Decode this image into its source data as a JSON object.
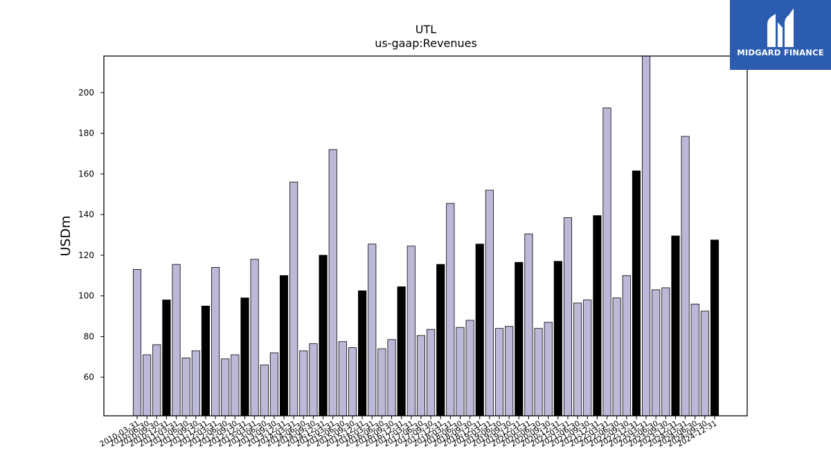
{
  "brand": {
    "name": "MIDGARD FINANCE",
    "color": "#2b5cb0",
    "icon": "midgard-logo-icon"
  },
  "chart_data": {
    "type": "bar",
    "title": "UTL",
    "subtitle": "us-gaap:Revenues",
    "xlabel": "",
    "ylabel": "USDm",
    "ylim": [
      41,
      218
    ],
    "yticks": [
      60,
      80,
      100,
      120,
      140,
      160,
      180,
      200
    ],
    "grid": false,
    "colors": {
      "quarter": "#bbb8d8",
      "year_end": "#000000",
      "edge": "#000000"
    },
    "categories": [
      "2010-03-31",
      "2010-06-30",
      "2010-09-30",
      "2010-12-31",
      "2011-03-31",
      "2011-06-30",
      "2011-09-30",
      "2011-12-31",
      "2012-03-31",
      "2012-06-30",
      "2012-09-30",
      "2012-12-31",
      "2013-03-31",
      "2013-06-30",
      "2013-09-30",
      "2013-12-31",
      "2014-03-31",
      "2014-06-30",
      "2014-09-30",
      "2014-12-31",
      "2015-03-31",
      "2015-06-30",
      "2015-09-30",
      "2015-12-31",
      "2016-03-31",
      "2016-06-30",
      "2016-09-30",
      "2016-12-31",
      "2017-03-31",
      "2017-06-30",
      "2017-09-30",
      "2017-12-31",
      "2018-03-31",
      "2018-06-30",
      "2018-09-30",
      "2018-12-31",
      "2019-03-31",
      "2019-06-30",
      "2019-09-30",
      "2019-12-31",
      "2020-03-31",
      "2020-06-30",
      "2020-09-30",
      "2020-12-31",
      "2021-03-31",
      "2021-06-30",
      "2021-09-30",
      "2021-12-31",
      "2022-03-31",
      "2022-06-30",
      "2022-09-30",
      "2022-12-31",
      "2023-03-31",
      "2023-06-30",
      "2023-09-30",
      "2023-12-31",
      "2024-03-31",
      "2024-06-30",
      "2024-09-30",
      "2024-12-31"
    ],
    "values": [
      113,
      71,
      76,
      98,
      115.5,
      69.5,
      73,
      95,
      114,
      69,
      71,
      99,
      118,
      66,
      72,
      110,
      156,
      73,
      76.5,
      120,
      172,
      77.5,
      74.5,
      102.5,
      125.5,
      74,
      78.5,
      104.5,
      124.5,
      80.5,
      83.5,
      115.5,
      145.5,
      84.5,
      88,
      125.5,
      152,
      84,
      85,
      116.5,
      130.5,
      84,
      87,
      117,
      138.5,
      96.5,
      98,
      139.5,
      192.5,
      99,
      110,
      161.5,
      218,
      103,
      104,
      129.5,
      178.5,
      96,
      92.5,
      127.5
    ]
  }
}
